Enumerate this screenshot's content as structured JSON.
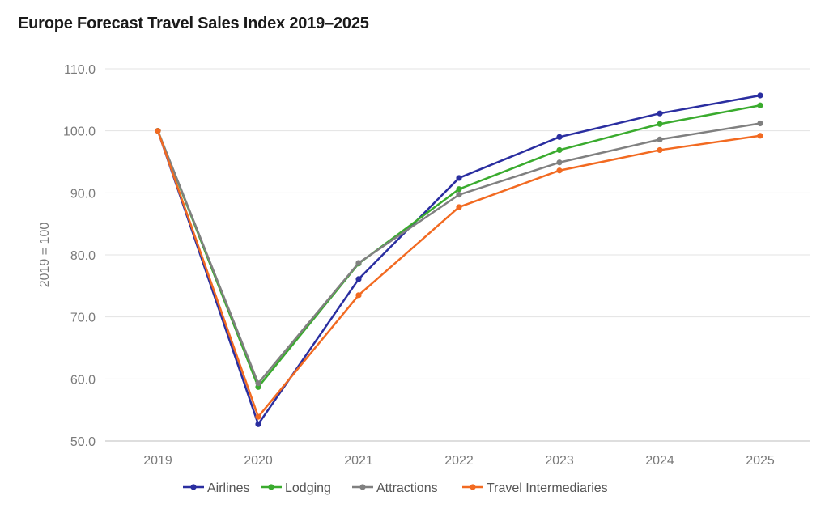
{
  "chart_data": {
    "type": "line",
    "title": "Europe Forecast Travel Sales Index 2019–2025",
    "xlabel": "",
    "ylabel": "2019 = 100",
    "categories": [
      "2019",
      "2020",
      "2021",
      "2022",
      "2023",
      "2024",
      "2025"
    ],
    "ylim": [
      50,
      110
    ],
    "yticks": [
      50,
      60,
      70,
      80,
      90,
      100,
      110
    ],
    "ytick_labels": [
      "50.0",
      "60.0",
      "70.0",
      "80.0",
      "90.0",
      "100.0",
      "110.0"
    ],
    "grid": true,
    "legend_position": "bottom",
    "series": [
      {
        "name": "Airlines",
        "color": "#2a2ea0",
        "values": [
          100.0,
          52.7,
          76.1,
          92.4,
          99.0,
          102.8,
          105.7
        ]
      },
      {
        "name": "Lodging",
        "color": "#3aab2e",
        "values": [
          100.0,
          58.7,
          78.6,
          90.6,
          96.9,
          101.1,
          104.1
        ]
      },
      {
        "name": "Attractions",
        "color": "#808080",
        "values": [
          100.0,
          59.3,
          78.7,
          89.7,
          94.9,
          98.6,
          101.2
        ]
      },
      {
        "name": "Travel Intermediaries",
        "color": "#f26a21",
        "values": [
          100.0,
          53.9,
          73.5,
          87.7,
          93.6,
          96.9,
          99.2
        ]
      }
    ]
  }
}
